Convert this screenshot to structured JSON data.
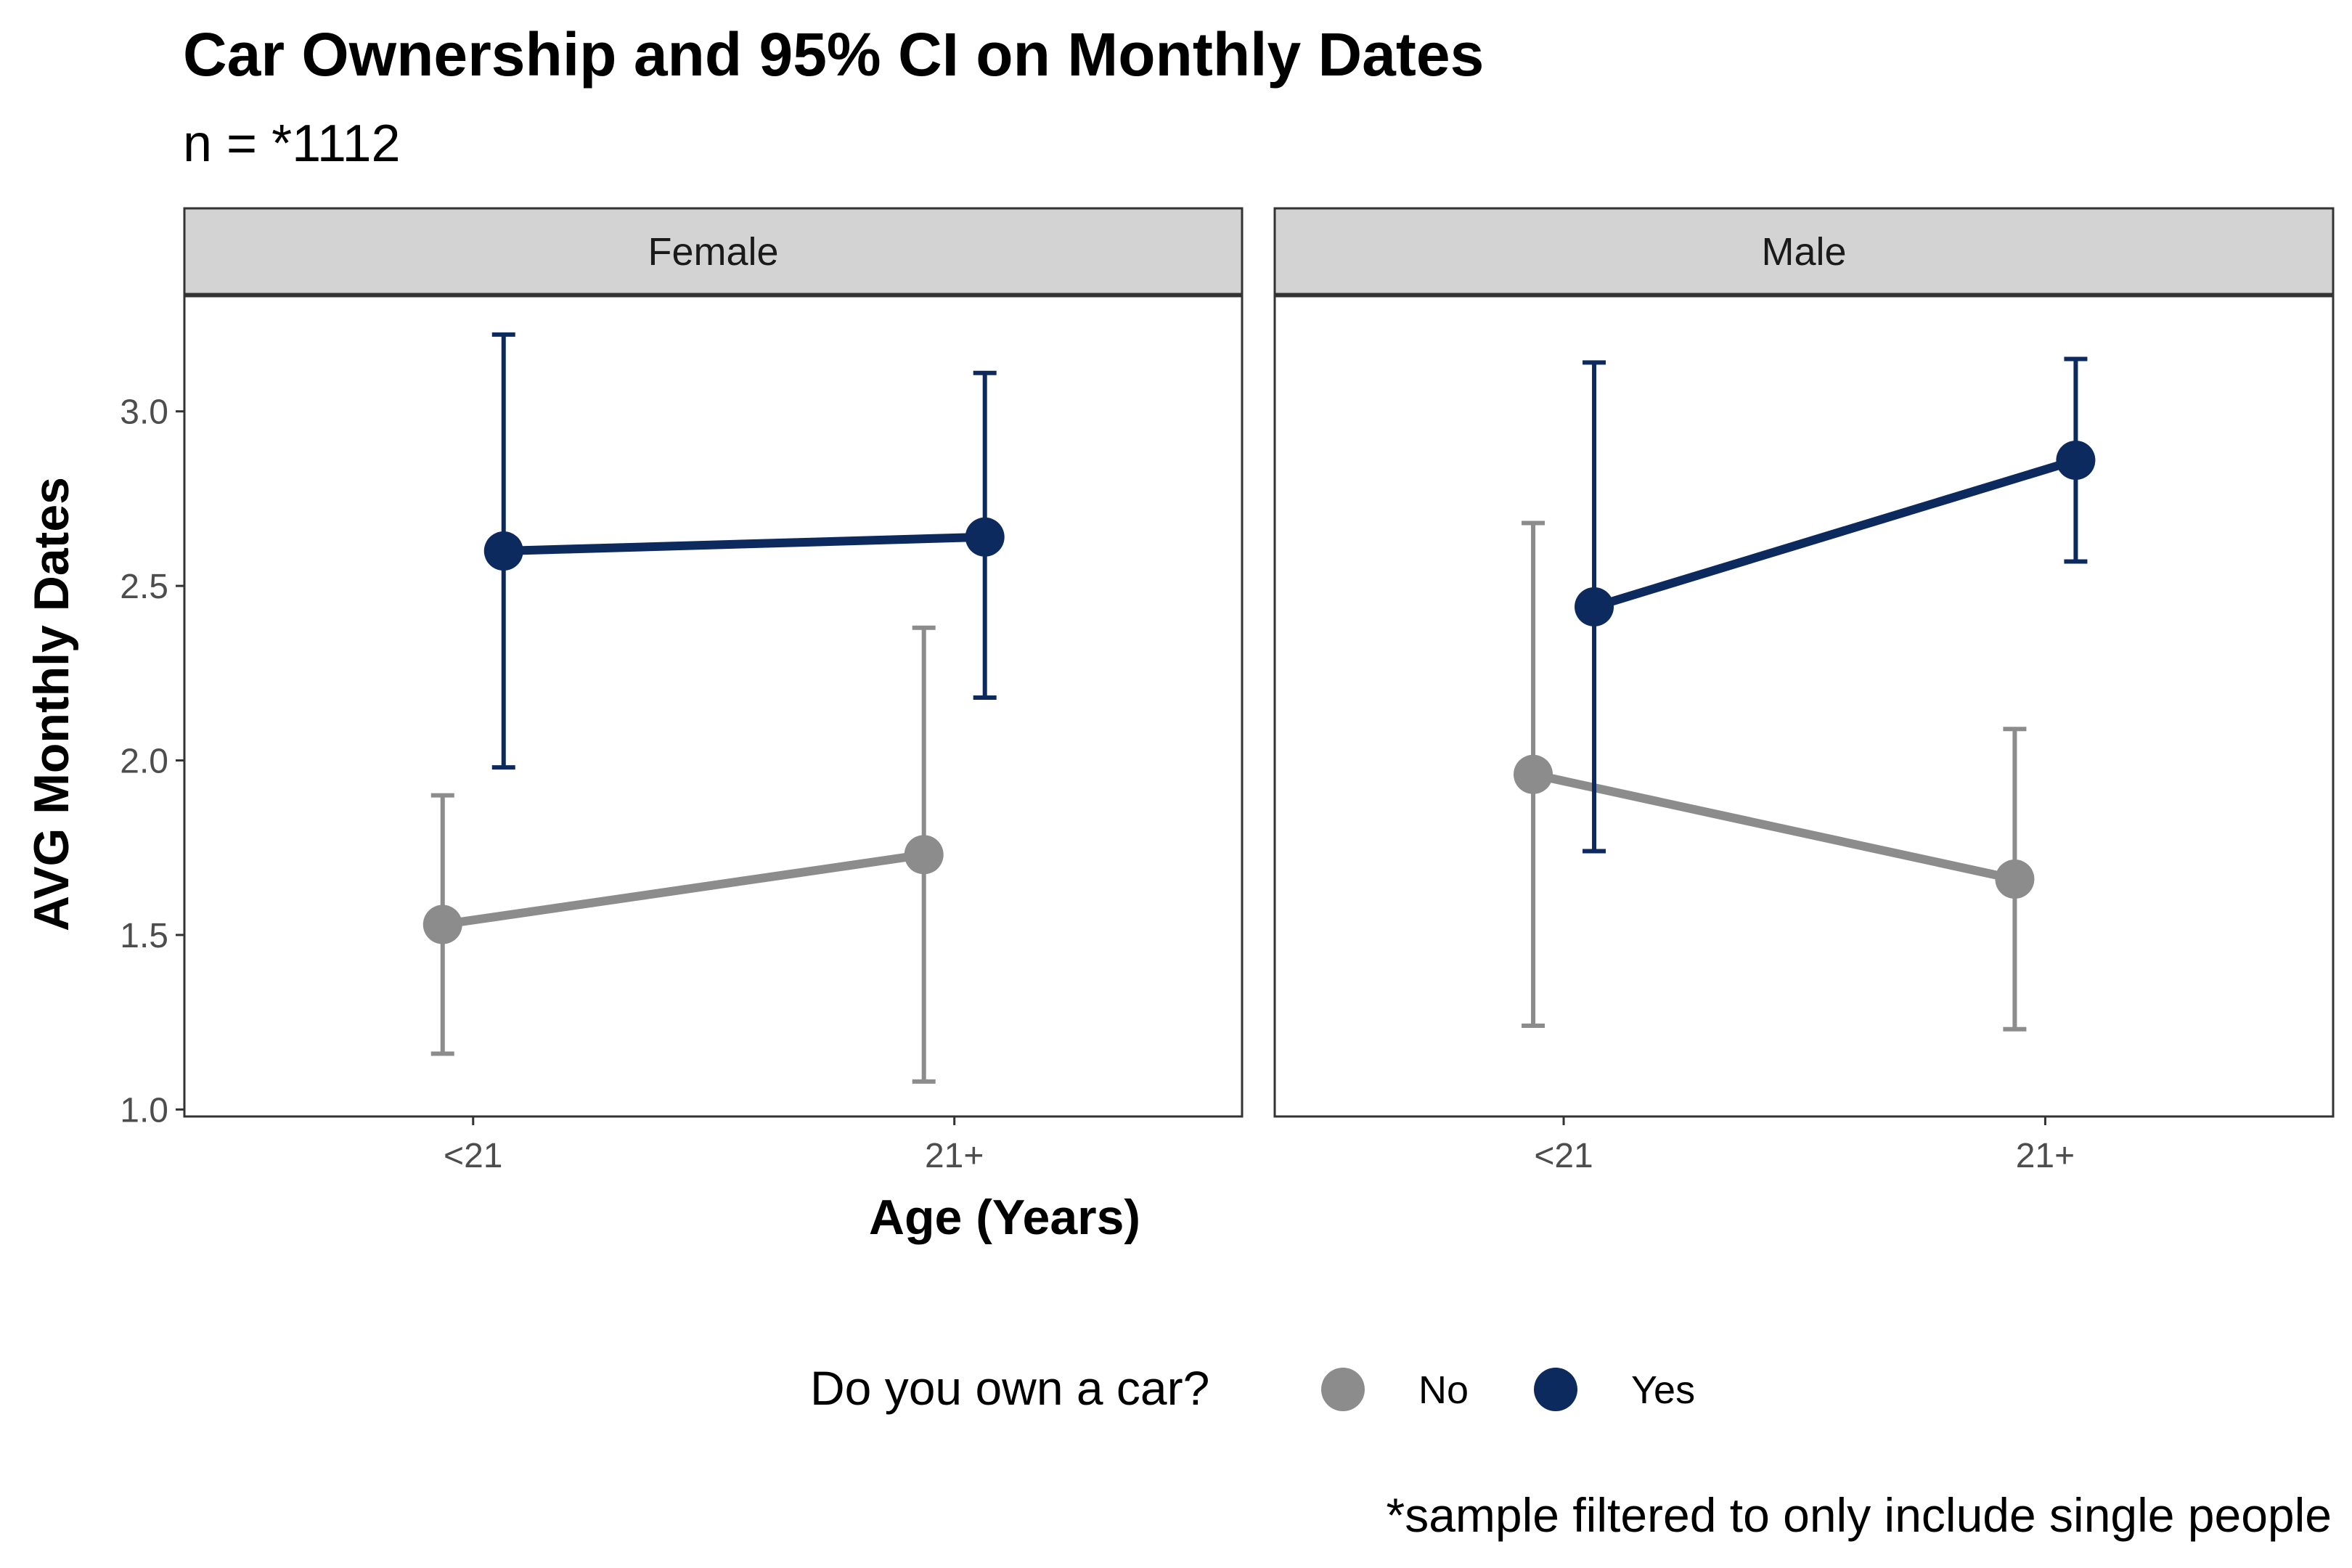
{
  "chart_data": {
    "type": "line",
    "title": "Car Ownership and 95% CI on Monthly Dates",
    "subtitle": "n = *1112",
    "xlabel": "Age (Years)",
    "ylabel": "AVG Monthly Dates",
    "caption": "*sample filtered to only include single people",
    "categories": [
      "<21",
      "21+"
    ],
    "ylim": [
      0.98,
      3.33
    ],
    "yticks": [
      "1.0",
      "1.5",
      "2.0",
      "2.5",
      "3.0"
    ],
    "ytick_values": [
      1.0,
      1.5,
      2.0,
      2.5,
      3.0
    ],
    "grid": false,
    "error_bars": "95% CI",
    "legend": {
      "title": "Do you own a car?",
      "position": "bottom",
      "entries": [
        {
          "label": "No",
          "color": "#8c8c8c"
        },
        {
          "label": "Yes",
          "color": "#0c2a5e"
        }
      ]
    },
    "panels": [
      {
        "name": "Female",
        "series": [
          {
            "name": "No",
            "color": "#8c8c8c",
            "values": [
              1.53,
              1.73
            ],
            "ci_low": [
              1.16,
              1.08
            ],
            "ci_high": [
              1.9,
              2.38
            ]
          },
          {
            "name": "Yes",
            "color": "#0c2a5e",
            "values": [
              2.6,
              2.64
            ],
            "ci_low": [
              1.98,
              2.18
            ],
            "ci_high": [
              3.22,
              3.11
            ]
          }
        ]
      },
      {
        "name": "Male",
        "series": [
          {
            "name": "No",
            "color": "#8c8c8c",
            "values": [
              1.96,
              1.66
            ],
            "ci_low": [
              1.24,
              1.23
            ],
            "ci_high": [
              2.68,
              2.09
            ]
          },
          {
            "name": "Yes",
            "color": "#0c2a5e",
            "values": [
              2.44,
              2.86
            ],
            "ci_low": [
              1.74,
              2.57
            ],
            "ci_high": [
              3.14,
              3.15
            ]
          }
        ]
      }
    ]
  }
}
